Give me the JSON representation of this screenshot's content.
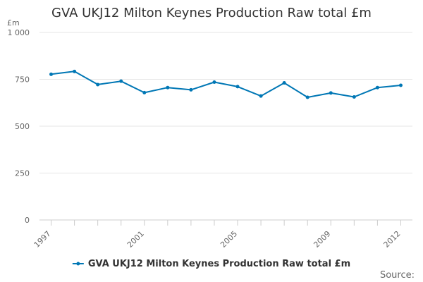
{
  "credits": "Source:",
  "chart_data": {
    "type": "line",
    "title": "GVA UKJ12 Milton Keynes Production Raw total £m",
    "ylabel": "£m",
    "xlabel": "",
    "ylim": [
      0,
      1000
    ],
    "y_ticks": [
      0,
      250,
      500,
      750,
      1000
    ],
    "y_tick_labels": [
      "0",
      "250",
      "500",
      "750",
      "1 000"
    ],
    "x_tick_labels": [
      "1997",
      "2001",
      "2005",
      "2009",
      "2012"
    ],
    "grid": true,
    "legend_position": "bottom-center",
    "series": [
      {
        "name": "GVA UKJ12 Milton Keynes Production Raw total £m",
        "color": "#0077b5",
        "x": [
          1997,
          1998,
          1999,
          2000,
          2001,
          2002,
          2003,
          2004,
          2005,
          2006,
          2007,
          2008,
          2009,
          2010,
          2011,
          2012
        ],
        "values": [
          777,
          792,
          722,
          740,
          679,
          706,
          694,
          735,
          711,
          661,
          731,
          654,
          677,
          656,
          706,
          718
        ]
      }
    ]
  }
}
